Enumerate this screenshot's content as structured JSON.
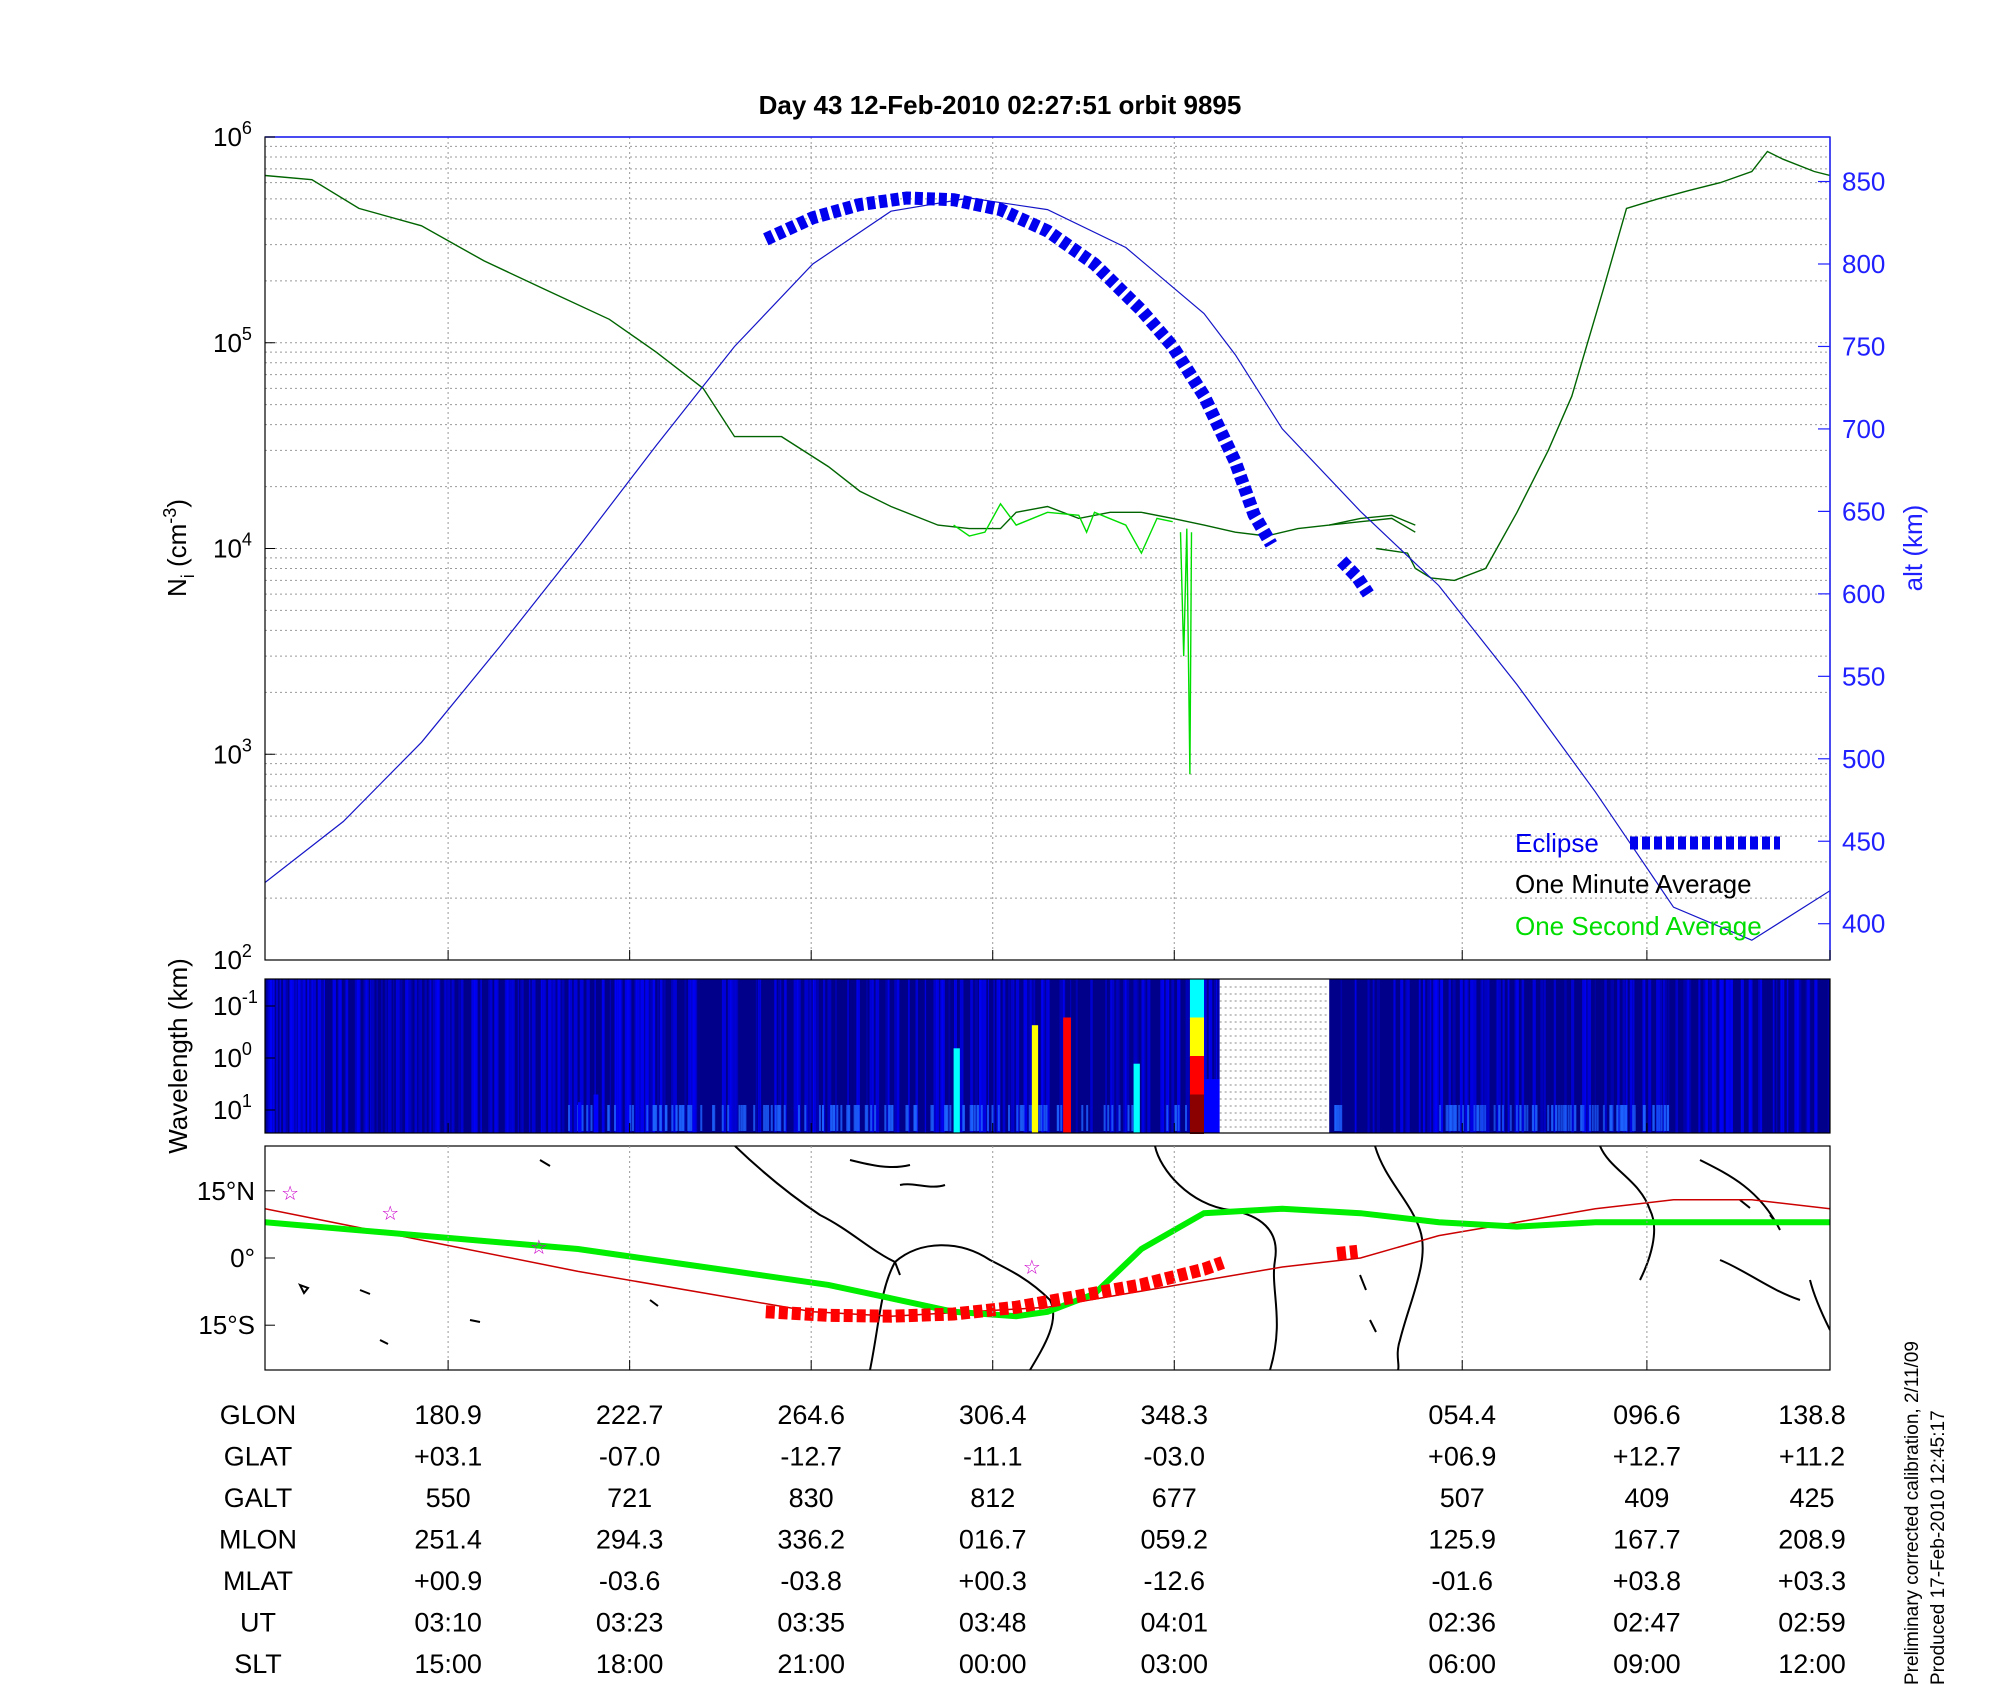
{
  "title": "Day 43  12-Feb-2010 02:27:51   orbit 9895",
  "chart_data": [
    {
      "type": "line",
      "panel": "ion-density",
      "ylabel_left": "N_i (cm^-3)",
      "ylabel_left_parts": {
        "base": "N",
        "sub": "i",
        "open": " (cm",
        "sup": "-3",
        "close": ")"
      },
      "ylabel_right": "alt (km)",
      "y_left_scale": "log",
      "y_left_range": [
        100,
        1000000
      ],
      "y_left_ticks": [
        {
          "base": "10",
          "exp": "2",
          "value": 100
        },
        {
          "base": "10",
          "exp": "3",
          "value": 1000
        },
        {
          "base": "10",
          "exp": "4",
          "value": 10000
        },
        {
          "base": "10",
          "exp": "5",
          "value": 100000
        },
        {
          "base": "10",
          "exp": "6",
          "value": 1000000
        }
      ],
      "y_right_range": [
        378,
        877
      ],
      "y_right_ticks": [
        "400",
        "450",
        "500",
        "550",
        "600",
        "650",
        "700",
        "750",
        "800",
        "850"
      ],
      "grid": true,
      "legend_position": "bottom-right",
      "legend": [
        {
          "label": "Eclipse",
          "color": "#0000ee"
        },
        {
          "label": "One Minute Average",
          "color": "#000000"
        },
        {
          "label": "One Second Average",
          "color": "#00dd00"
        }
      ],
      "series": [
        {
          "name": "One Minute Average",
          "color": "#006400",
          "segments": [
            [
              [
                0,
                650000
              ],
              [
                0.03,
                620000
              ],
              [
                0.06,
                450000
              ],
              [
                0.1,
                370000
              ],
              [
                0.14,
                250000
              ],
              [
                0.18,
                180000
              ],
              [
                0.22,
                130000
              ],
              [
                0.25,
                90000
              ],
              [
                0.28,
                60000
              ],
              [
                0.3,
                35000
              ],
              [
                0.33,
                35000
              ],
              [
                0.36,
                25000
              ],
              [
                0.38,
                19000
              ],
              [
                0.4,
                16000
              ],
              [
                0.43,
                13000
              ],
              [
                0.45,
                12500
              ],
              [
                0.47,
                12500
              ],
              [
                0.48,
                15000
              ],
              [
                0.5,
                16000
              ],
              [
                0.52,
                14000
              ],
              [
                0.54,
                15000
              ],
              [
                0.56,
                15000
              ],
              [
                0.58,
                14000
              ],
              [
                0.6,
                13000
              ],
              [
                0.62,
                12000
              ],
              [
                0.64,
                11500
              ],
              [
                0.66,
                12500
              ],
              [
                0.68,
                13000
              ],
              [
                0.7,
                14000
              ],
              [
                0.72,
                14500
              ],
              [
                0.735,
                13000
              ]
            ],
            [
              [
                0.68,
                13000
              ],
              [
                0.7,
                13500
              ],
              [
                0.72,
                14000
              ],
              [
                0.735,
                12000
              ]
            ],
            [
              [
                0.71,
                10000
              ],
              [
                0.73,
                9500
              ],
              [
                0.735,
                8000
              ],
              [
                0.745,
                7200
              ],
              [
                0.76,
                7000
              ],
              [
                0.78,
                8000
              ],
              [
                0.8,
                15000
              ],
              [
                0.82,
                30000
              ],
              [
                0.835,
                55000
              ],
              [
                0.855,
                180000
              ],
              [
                0.87,
                450000
              ],
              [
                0.89,
                500000
              ],
              [
                0.91,
                550000
              ],
              [
                0.93,
                600000
              ],
              [
                0.95,
                680000
              ],
              [
                0.96,
                850000
              ],
              [
                0.97,
                780000
              ],
              [
                0.99,
                680000
              ],
              [
                1.0,
                650000
              ]
            ]
          ]
        },
        {
          "name": "One Second Average",
          "color": "#00dd00",
          "segments": [
            [
              [
                0.44,
                13000
              ],
              [
                0.45,
                11500
              ],
              [
                0.46,
                12000
              ],
              [
                0.47,
                16500
              ],
              [
                0.48,
                13000
              ],
              [
                0.5,
                15000
              ],
              [
                0.52,
                14500
              ],
              [
                0.525,
                12000
              ],
              [
                0.53,
                15000
              ],
              [
                0.55,
                13000
              ],
              [
                0.56,
                9500
              ],
              [
                0.57,
                14000
              ],
              [
                0.58,
                13500
              ]
            ],
            [
              [
                0.585,
                12000
              ],
              [
                0.587,
                3000
              ],
              [
                0.589,
                12500
              ],
              [
                0.591,
                800
              ],
              [
                0.592,
                12000
              ]
            ]
          ]
        },
        {
          "name": "Altitude",
          "color": "#1515c8",
          "axis": "right",
          "x": [
            0,
            0.05,
            0.1,
            0.15,
            0.2,
            0.25,
            0.3,
            0.35,
            0.4,
            0.45,
            0.5,
            0.55,
            0.6,
            0.62,
            0.65,
            0.7,
            0.75,
            0.8,
            0.85,
            0.9,
            0.95,
            1.0
          ],
          "y": [
            425,
            462,
            510,
            568,
            628,
            690,
            750,
            800,
            832,
            840,
            833,
            810,
            770,
            745,
            700,
            650,
            605,
            545,
            480,
            410,
            390,
            420
          ]
        },
        {
          "name": "Eclipse",
          "color": "#0000ee",
          "axis": "right",
          "segments": [
            [
              [
                0.32,
                815
              ],
              [
                0.35,
                828
              ],
              [
                0.38,
                836
              ],
              [
                0.41,
                840
              ],
              [
                0.44,
                839
              ],
              [
                0.47,
                833
              ],
              [
                0.5,
                820
              ],
              [
                0.53,
                800
              ],
              [
                0.56,
                772
              ],
              [
                0.58,
                750
              ],
              [
                0.6,
                720
              ],
              [
                0.62,
                680
              ],
              [
                0.632,
                648
              ],
              [
                0.643,
                630
              ]
            ],
            [
              [
                0.688,
                620
              ],
              [
                0.698,
                610
              ],
              [
                0.705,
                600
              ]
            ]
          ]
        }
      ]
    },
    {
      "type": "heatmap",
      "panel": "spectrogram",
      "ylabel": "Wavelength (km)",
      "y_ticks": [
        {
          "base": "10",
          "exp": "-1"
        },
        {
          "base": "10",
          "exp": "0"
        },
        {
          "base": "10",
          "exp": "1"
        }
      ],
      "colormap": [
        "#00008b",
        "#0000ff",
        "#00ffff",
        "#ffff00",
        "#ff0000",
        "#8b0000"
      ],
      "gap": [
        0.61,
        0.68
      ],
      "hot_bands": [
        {
          "x": 0.591,
          "width": 0.009,
          "level": 1.0
        },
        {
          "x": 0.6,
          "width": 0.012,
          "level": 0.35
        },
        {
          "x": 0.44,
          "width": 0.004,
          "level": 0.55
        },
        {
          "x": 0.49,
          "width": 0.004,
          "level": 0.7
        },
        {
          "x": 0.51,
          "width": 0.005,
          "level": 0.75
        },
        {
          "x": 0.555,
          "width": 0.004,
          "level": 0.45
        },
        {
          "x": 0.21,
          "width": 0.003,
          "level": 0.25
        },
        {
          "x": 0.2,
          "width": 0.002,
          "level": 0.2
        }
      ]
    },
    {
      "type": "map",
      "panel": "ground-track",
      "y_ticks": [
        "15°N",
        "0°",
        "15°S"
      ],
      "lat_range": [
        -25,
        25
      ],
      "ground_track_color": "#cc0000",
      "eclipse_track_color": "#ff0000",
      "dip_equator_color": "#00ee00",
      "star_color": "#cc00cc",
      "dip_equator": {
        "x": [
          0,
          0.1,
          0.2,
          0.3,
          0.36,
          0.4,
          0.44,
          0.48,
          0.5,
          0.53,
          0.56,
          0.6,
          0.65,
          0.7,
          0.75,
          0.8,
          0.85,
          0.9,
          0.95,
          1.0
        ],
        "lat": [
          8,
          5,
          2,
          -3,
          -6,
          -9,
          -12,
          -13,
          -12,
          -8,
          2,
          10,
          11,
          10,
          8,
          7,
          8,
          8,
          8,
          8
        ]
      },
      "ground_track": {
        "x": [
          0,
          0.1,
          0.2,
          0.3,
          0.35,
          0.4,
          0.45,
          0.5,
          0.55,
          0.6,
          0.65,
          0.7,
          0.75,
          0.8,
          0.85,
          0.9,
          0.95,
          1.0
        ],
        "lat": [
          11,
          4,
          -3,
          -9,
          -12,
          -13,
          -12,
          -11,
          -8,
          -5,
          -2,
          0,
          5,
          8,
          11,
          13,
          13,
          11
        ]
      },
      "eclipse_track": [
        {
          "x": [
            0.32,
            0.36,
            0.4,
            0.44,
            0.48,
            0.52,
            0.56,
            0.6,
            0.612
          ],
          "lat": [
            -12,
            -12.8,
            -13,
            -12.5,
            -11,
            -8.5,
            -6,
            -2.5,
            -1
          ]
        },
        {
          "x": [
            0.685,
            0.698
          ],
          "lat": [
            1,
            1.5
          ]
        }
      ],
      "stars": [
        {
          "x": 0.016,
          "lat": 14.5
        },
        {
          "x": 0.08,
          "lat": 10
        },
        {
          "x": 0.175,
          "lat": 2.5
        },
        {
          "x": 0.49,
          "lat": -2
        }
      ]
    }
  ],
  "table": {
    "rows": [
      {
        "label": "GLON",
        "values": [
          "180.9",
          "222.7",
          "264.6",
          "306.4",
          "348.3",
          "054.4",
          "096.6",
          "138.8"
        ]
      },
      {
        "label": "GLAT",
        "values": [
          "+03.1",
          "-07.0",
          "-12.7",
          "-11.1",
          "-03.0",
          "+06.9",
          "+12.7",
          "+11.2"
        ]
      },
      {
        "label": "GALT",
        "values": [
          "550",
          "721",
          "830",
          "812",
          "677",
          "507",
          "409",
          "425"
        ]
      },
      {
        "label": "MLON",
        "values": [
          "251.4",
          "294.3",
          "336.2",
          "016.7",
          "059.2",
          "125.9",
          "167.7",
          "208.9"
        ]
      },
      {
        "label": "MLAT",
        "values": [
          "+00.9",
          "-03.6",
          "-03.8",
          "+00.3",
          "-12.6",
          "-01.6",
          "+03.8",
          "+03.3"
        ]
      },
      {
        "label": "UT",
        "values": [
          "03:10",
          "03:23",
          "03:35",
          "03:48",
          "04:01",
          "02:36",
          "02:47",
          "02:59"
        ]
      },
      {
        "label": "SLT",
        "values": [
          "15:00",
          "18:00",
          "21:00",
          "00:00",
          "03:00",
          "06:00",
          "09:00",
          "12:00"
        ]
      }
    ]
  },
  "notes": {
    "line1": "Preliminary corrected calibration, 2/11/09",
    "line2": "Produced 17-Feb-2010 12:45:17"
  }
}
